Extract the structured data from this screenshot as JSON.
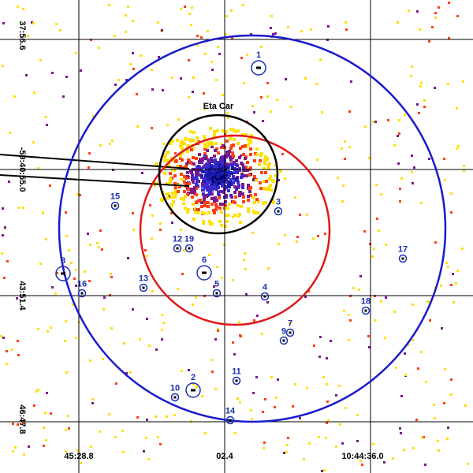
{
  "image": {
    "target_label": "Eta Car",
    "left_labels": [
      "37:56.6",
      "-59:40:55.0",
      "43:51.4",
      "46:47.8"
    ],
    "bottom_labels": [
      "45:28.8",
      "02.4",
      "10:44:36.0"
    ],
    "sources": [
      "1",
      "15",
      "3",
      "12",
      "19",
      "17",
      "8",
      "6",
      "16",
      "13",
      "5",
      "4",
      "18",
      "7",
      "9",
      "11",
      "2",
      "10",
      "14"
    ]
  }
}
